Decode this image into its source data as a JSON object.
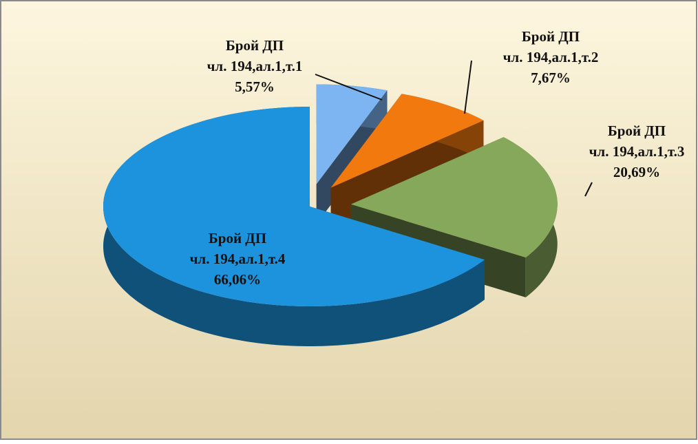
{
  "chart_data": {
    "type": "pie",
    "categories": [
      [
        "Брой ДП",
        "чл. 194,ал.1,т.1"
      ],
      [
        "Брой ДП",
        "чл. 194,ал.1,т.2"
      ],
      [
        "Брой ДП",
        "чл. 194,ал.1,т.3"
      ],
      [
        "Брой ДП",
        "чл. 194,ал.1,т.4"
      ]
    ],
    "values": [
      5.57,
      7.67,
      20.69,
      66.06
    ],
    "value_labels": [
      "5,57%",
      "7,67%",
      "20,69%",
      "66,06%"
    ],
    "colors": [
      "#7db4f2",
      "#f2790e",
      "#86a85a",
      "#1c93dc"
    ]
  }
}
